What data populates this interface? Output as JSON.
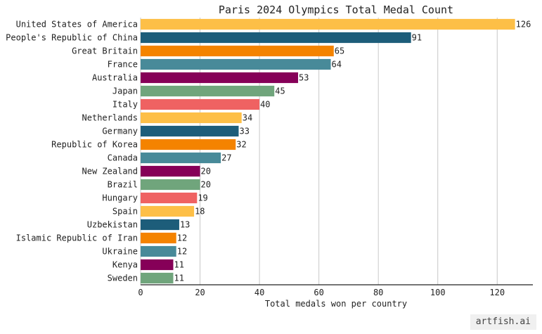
{
  "chart_data": {
    "type": "bar",
    "orientation": "horizontal",
    "title": "Paris 2024 Olympics Total Medal Count",
    "xlabel": "Total medals won per country",
    "ylabel": "",
    "xlim": [
      0,
      132
    ],
    "xticks": [
      0,
      20,
      40,
      60,
      80,
      100,
      120
    ],
    "grid": "vertical",
    "categories": [
      "United States of America",
      "People's Republic of China",
      "Great Britain",
      "France",
      "Australia",
      "Japan",
      "Italy",
      "Netherlands",
      "Germany",
      "Republic of Korea",
      "Canada",
      "New Zealand",
      "Brazil",
      "Hungary",
      "Spain",
      "Uzbekistan",
      "Islamic Republic of Iran",
      "Ukraine",
      "Kenya",
      "Sweden"
    ],
    "values": [
      126,
      91,
      65,
      64,
      53,
      45,
      40,
      34,
      33,
      32,
      27,
      20,
      20,
      19,
      18,
      13,
      12,
      12,
      11,
      11
    ],
    "colors": [
      "#FDBF47",
      "#1D5D7A",
      "#F48300",
      "#488A99",
      "#860058",
      "#70A57C",
      "#EF6262"
    ]
  },
  "watermark": "artfish.ai"
}
